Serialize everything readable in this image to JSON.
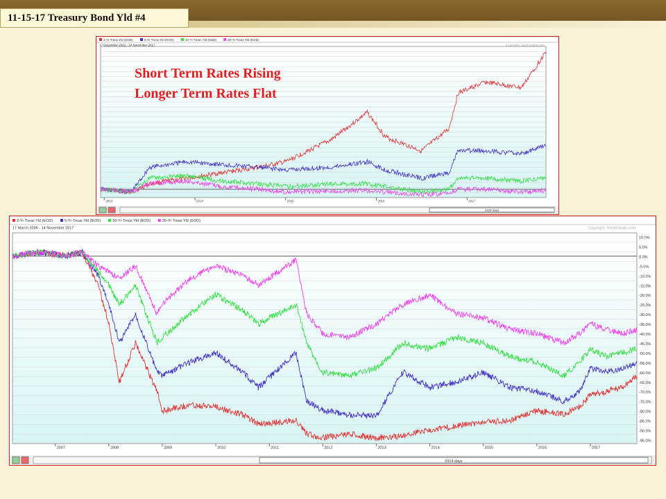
{
  "slide_title": "11-15-17 Treasury Bond Yld #4",
  "annotations": [
    "Short Term Rates Rising",
    "Longer Term Rates Flat"
  ],
  "colors": {
    "2yr": "#e03030",
    "5yr": "#4030c0",
    "10yr": "#30e040",
    "30yr": "#f040f0"
  },
  "chart_data": [
    {
      "type": "line",
      "legend": [
        "2-Yr Treas Yld (EOD)",
        "5-Yr Treas Yld (EOD)",
        "10-Yr Treas Yld (EOD)",
        "30-Yr Treas Yld (EOD)"
      ],
      "date_range": "17 December 2012 - 14 November 2017",
      "copyright": "Copyright: StockCharts.com",
      "x_ticks": [
        "2013",
        "2014",
        "2015",
        "2016",
        "2017"
      ],
      "y_unit": "percent change",
      "scrollbar_label": "1229 days",
      "series": [
        {
          "name": "2-Yr Treas Yld (EOD)",
          "x": [
            2012.96,
            2013.3,
            2013.5,
            2013.9,
            2014.3,
            2014.7,
            2015.0,
            2015.5,
            2015.9,
            2016.1,
            2016.5,
            2016.8,
            2016.9,
            2017.2,
            2017.6,
            2017.87
          ],
          "values": [
            0,
            -5,
            10,
            20,
            30,
            40,
            50,
            90,
            140,
            95,
            70,
            110,
            175,
            195,
            185,
            250
          ]
        },
        {
          "name": "5-Yr Treas Yld (EOD)",
          "x": [
            2012.96,
            2013.3,
            2013.5,
            2013.9,
            2014.3,
            2014.7,
            2015.0,
            2015.5,
            2015.9,
            2016.1,
            2016.5,
            2016.8,
            2016.9,
            2017.2,
            2017.6,
            2017.87
          ],
          "values": [
            0,
            -5,
            40,
            50,
            45,
            40,
            35,
            40,
            50,
            35,
            20,
            30,
            70,
            70,
            65,
            80
          ]
        },
        {
          "name": "10-Yr Treas Yld (EOD)",
          "x": [
            2012.96,
            2013.3,
            2013.5,
            2013.9,
            2014.3,
            2014.7,
            2015.0,
            2015.5,
            2015.9,
            2016.1,
            2016.5,
            2016.8,
            2016.9,
            2017.2,
            2017.6,
            2017.87
          ],
          "values": [
            0,
            -5,
            20,
            25,
            15,
            10,
            5,
            10,
            10,
            5,
            -5,
            0,
            20,
            20,
            15,
            20
          ]
        },
        {
          "name": "30-Yr Treas Yld (EOD)",
          "x": [
            2012.96,
            2013.3,
            2013.5,
            2013.9,
            2014.3,
            2014.7,
            2015.0,
            2015.5,
            2015.9,
            2016.1,
            2016.5,
            2016.8,
            2016.9,
            2017.2,
            2017.6,
            2017.87
          ],
          "values": [
            0,
            -5,
            10,
            15,
            5,
            0,
            -5,
            -3,
            -2,
            -5,
            -10,
            -8,
            0,
            0,
            -5,
            -2
          ]
        }
      ],
      "ylim": [
        -15,
        260
      ]
    },
    {
      "type": "line",
      "legend": [
        "2-Yr Treas Yld (EOD)",
        "5-Yr Treas Yld (EOD)",
        "10-Yr Treas Yld (EOD)",
        "30-Yr Treas Yld (EOD)"
      ],
      "date_range": "17 March 2006 - 14 November 2017",
      "copyright": "Copyright: StockCharts.com",
      "x_ticks": [
        "2007",
        "2008",
        "2009",
        "2010",
        "2011",
        "2012",
        "2013",
        "2014",
        "2015",
        "2016",
        "2017"
      ],
      "y_ticks": [
        "10.0%",
        "5.0%",
        "0.0%",
        "-5.0%",
        "-10.0%",
        "-15.0%",
        "-20.0%",
        "-25.0%",
        "-30.0%",
        "-35.0%",
        "-40.0%",
        "-45.0%",
        "-50.0%",
        "-55.0%",
        "-60.0%",
        "-65.0%",
        "-70.0%",
        "-75.0%",
        "-80.0%",
        "-85.0%",
        "-90.0%",
        "-95.0%"
      ],
      "scrollbar_label": "2914 days",
      "series": [
        {
          "name": "2-Yr Treas Yld (EOD)",
          "x": [
            2006.2,
            2006.7,
            2007.2,
            2007.5,
            2007.8,
            2008.0,
            2008.2,
            2008.5,
            2008.9,
            2009.0,
            2009.5,
            2010.0,
            2010.5,
            2010.8,
            2011.5,
            2011.7,
            2012.0,
            2012.5,
            2013.0,
            2013.5,
            2014.0,
            2014.5,
            2015.0,
            2015.5,
            2016.0,
            2016.5,
            2016.8,
            2017.0,
            2017.3,
            2017.6,
            2017.87
          ],
          "values": [
            0,
            2,
            0,
            2,
            -15,
            -35,
            -65,
            -45,
            -70,
            -80,
            -77,
            -78,
            -82,
            -87,
            -85,
            -92,
            -94,
            -92,
            -94,
            -93,
            -90,
            -88,
            -86,
            -85,
            -80,
            -82,
            -78,
            -72,
            -70,
            -68,
            -62
          ]
        },
        {
          "name": "5-Yr Treas Yld (EOD)",
          "x": [
            2006.2,
            2006.7,
            2007.2,
            2007.5,
            2007.8,
            2008.0,
            2008.2,
            2008.5,
            2008.9,
            2009.0,
            2009.5,
            2010.0,
            2010.5,
            2010.8,
            2011.5,
            2011.7,
            2012.0,
            2012.5,
            2013.0,
            2013.5,
            2014.0,
            2014.5,
            2015.0,
            2015.5,
            2016.0,
            2016.5,
            2016.8,
            2017.0,
            2017.3,
            2017.6,
            2017.87
          ],
          "values": [
            0,
            2,
            0,
            2,
            -10,
            -25,
            -45,
            -30,
            -60,
            -62,
            -55,
            -50,
            -60,
            -68,
            -50,
            -75,
            -80,
            -82,
            -83,
            -60,
            -68,
            -65,
            -60,
            -68,
            -70,
            -75,
            -70,
            -58,
            -60,
            -58,
            -55
          ]
        },
        {
          "name": "10-Yr Treas Yld (EOD)",
          "x": [
            2006.2,
            2006.7,
            2007.2,
            2007.5,
            2007.8,
            2008.0,
            2008.2,
            2008.5,
            2008.9,
            2009.0,
            2009.5,
            2010.0,
            2010.5,
            2010.8,
            2011.5,
            2011.7,
            2012.0,
            2012.5,
            2013.0,
            2013.5,
            2014.0,
            2014.5,
            2015.0,
            2015.5,
            2016.0,
            2016.5,
            2016.8,
            2017.0,
            2017.3,
            2017.6,
            2017.87
          ],
          "values": [
            0,
            2,
            0,
            2,
            -8,
            -15,
            -25,
            -15,
            -45,
            -42,
            -30,
            -20,
            -28,
            -35,
            -25,
            -45,
            -60,
            -62,
            -58,
            -45,
            -48,
            -42,
            -45,
            -52,
            -55,
            -62,
            -55,
            -48,
            -52,
            -50,
            -48
          ]
        },
        {
          "name": "30-Yr Treas Yld (EOD)",
          "x": [
            2006.2,
            2006.7,
            2007.2,
            2007.5,
            2007.8,
            2008.0,
            2008.2,
            2008.5,
            2008.9,
            2009.0,
            2009.5,
            2010.0,
            2010.5,
            2010.8,
            2011.5,
            2011.7,
            2012.0,
            2012.5,
            2013.0,
            2013.5,
            2014.0,
            2014.5,
            2015.0,
            2015.5,
            2016.0,
            2016.5,
            2016.8,
            2017.0,
            2017.3,
            2017.6,
            2017.87
          ],
          "values": [
            0,
            2,
            0,
            2,
            -5,
            -8,
            -12,
            -5,
            -30,
            -25,
            -12,
            -5,
            -10,
            -15,
            -2,
            -30,
            -40,
            -42,
            -35,
            -25,
            -20,
            -30,
            -32,
            -38,
            -40,
            -45,
            -40,
            -35,
            -38,
            -40,
            -38
          ]
        }
      ],
      "ylim": [
        -97,
        12
      ]
    }
  ]
}
